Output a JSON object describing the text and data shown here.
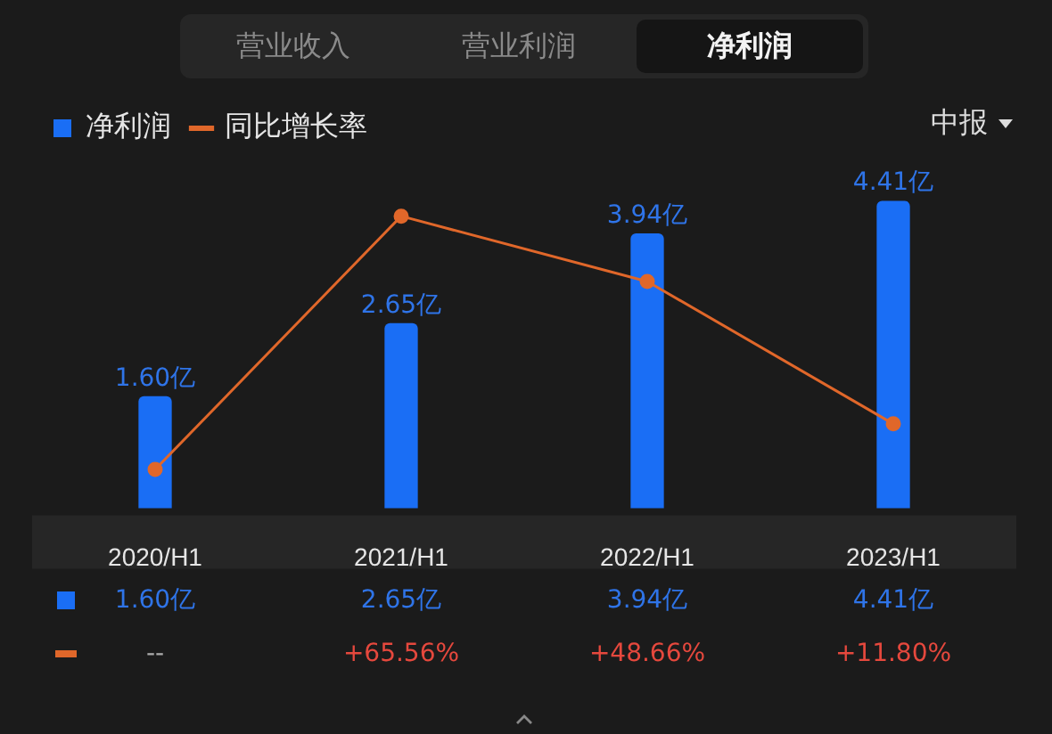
{
  "chart_data": {
    "type": "bar",
    "title": "净利润",
    "annotations": [
      "营业收入",
      "营业利润",
      "中报"
    ],
    "categories": [
      "2020/H1",
      "2021/H1",
      "2022/H1",
      "2023/H1"
    ],
    "series": [
      {
        "name": "净利润",
        "color": "#1a6ef5",
        "values": [
          1.6,
          2.65,
          3.94,
          4.41
        ],
        "value_labels": [
          "1.60亿",
          "2.65亿",
          "3.94亿",
          "4.41亿"
        ]
      },
      {
        "name": "同比增长率",
        "type": "line",
        "axis": "y2",
        "color": "#e0672a",
        "values": [
          0,
          65.56,
          48.66,
          11.8
        ],
        "value_labels": [
          "--",
          "+65.56%",
          "+48.66%",
          "+11.80%"
        ]
      }
    ],
    "legend": "top left",
    "marker": "circle",
    "tick_labels": "x"
  }
}
